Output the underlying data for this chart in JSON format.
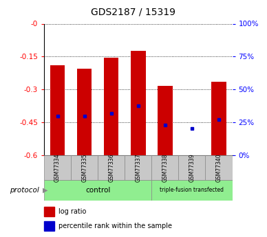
{
  "title": "GDS2187 / 15319",
  "samples": [
    "GSM77334",
    "GSM77335",
    "GSM77336",
    "GSM77337",
    "GSM77338",
    "GSM77339",
    "GSM77340"
  ],
  "log_ratio": [
    -0.19,
    -0.205,
    -0.155,
    -0.125,
    -0.285,
    -0.605,
    -0.265
  ],
  "percentile_rank": [
    0.3,
    0.3,
    0.32,
    0.375,
    0.23,
    0.205,
    0.27
  ],
  "yticks_left": [
    0,
    -0.15,
    -0.3,
    -0.45,
    -0.6
  ],
  "ytick_labels_left": [
    "-0",
    "-0.15",
    "-0.3",
    "-0.45",
    "-0.6"
  ],
  "yticks_right_pct": [
    100,
    75,
    50,
    25,
    0
  ],
  "bar_color": "#cc0000",
  "marker_color": "#0000cc",
  "bar_width": 0.55,
  "sample_box_color": "#c8c8c8",
  "control_color": "#90ee90",
  "tf_color": "#90ee90",
  "title_fontsize": 10,
  "tick_label_fontsize": 7.5,
  "legend_fontsize": 7,
  "protocol_fontsize": 7.5,
  "sample_fontsize": 5.5,
  "control_label": "control",
  "tf_label": "triple-fusion transfected",
  "protocol_label": "protocol",
  "legend_items": [
    {
      "label": "log ratio",
      "color": "#cc0000"
    },
    {
      "label": "percentile rank within the sample",
      "color": "#0000cc"
    }
  ]
}
